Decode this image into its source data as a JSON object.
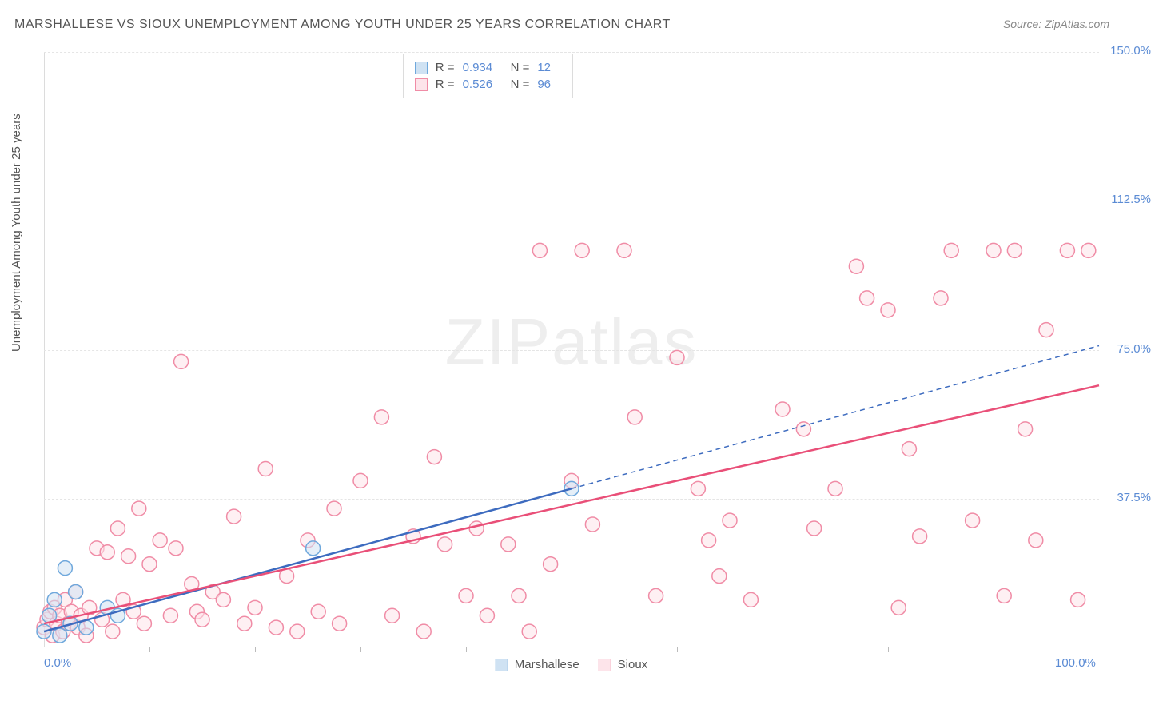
{
  "title": "MARSHALLESE VS SIOUX UNEMPLOYMENT AMONG YOUTH UNDER 25 YEARS CORRELATION CHART",
  "source": "Source: ZipAtlas.com",
  "y_axis_label": "Unemployment Among Youth under 25 years",
  "watermark_a": "ZIP",
  "watermark_b": "atlas",
  "chart": {
    "type": "scatter-with-regression",
    "background_color": "#ffffff",
    "grid_color": "#e5e5e5",
    "axis_color": "#dcdcdc",
    "tick_label_color": "#5b8bd4",
    "text_color": "#555555",
    "xlim": [
      0,
      100
    ],
    "ylim": [
      0,
      150
    ],
    "x_ticks_minor": [
      10,
      20,
      30,
      40,
      50,
      60,
      70,
      80,
      90
    ],
    "x_tick_labels": [
      {
        "pos": 0,
        "label": "0.0%"
      },
      {
        "pos": 100,
        "label": "100.0%"
      }
    ],
    "y_tick_labels": [
      {
        "pos": 37.5,
        "label": "37.5%"
      },
      {
        "pos": 75.0,
        "label": "75.0%"
      },
      {
        "pos": 112.5,
        "label": "112.5%"
      },
      {
        "pos": 150.0,
        "label": "150.0%"
      }
    ],
    "series": [
      {
        "name": "Marshallese",
        "color_fill": "#cfe2f3",
        "color_stroke": "#6fa8dc",
        "line_color": "#3d6bbf",
        "marker_radius": 9,
        "r_value": "0.934",
        "n_value": "12",
        "regression": {
          "x1": 0,
          "y1": 4,
          "x2_solid": 50,
          "y2_solid": 40,
          "x2": 100,
          "y2": 76
        },
        "points": [
          [
            0,
            4
          ],
          [
            0.5,
            8
          ],
          [
            1,
            12
          ],
          [
            1.5,
            3
          ],
          [
            2,
            20
          ],
          [
            2.5,
            6
          ],
          [
            3,
            14
          ],
          [
            4,
            5
          ],
          [
            6,
            10
          ],
          [
            7,
            8
          ],
          [
            25.5,
            25
          ],
          [
            50,
            40
          ]
        ]
      },
      {
        "name": "Sioux",
        "color_fill": "#fde4ea",
        "color_stroke": "#f08ca6",
        "line_color": "#e94f78",
        "marker_radius": 9,
        "r_value": "0.526",
        "n_value": "96",
        "regression": {
          "x1": 0,
          "y1": 6,
          "x2_solid": 100,
          "y2_solid": 66,
          "x2": 100,
          "y2": 66
        },
        "points": [
          [
            0,
            5
          ],
          [
            0.3,
            7
          ],
          [
            0.6,
            9
          ],
          [
            0.8,
            3
          ],
          [
            1,
            10
          ],
          [
            1.2,
            6
          ],
          [
            1.5,
            8
          ],
          [
            1.8,
            4
          ],
          [
            2,
            12
          ],
          [
            2.3,
            6
          ],
          [
            2.6,
            9
          ],
          [
            3,
            14
          ],
          [
            3.2,
            5
          ],
          [
            3.5,
            8
          ],
          [
            4,
            3
          ],
          [
            4.3,
            10
          ],
          [
            5,
            25
          ],
          [
            5.5,
            7
          ],
          [
            6,
            24
          ],
          [
            6.5,
            4
          ],
          [
            7,
            30
          ],
          [
            7.5,
            12
          ],
          [
            8,
            23
          ],
          [
            8.5,
            9
          ],
          [
            9,
            35
          ],
          [
            9.5,
            6
          ],
          [
            10,
            21
          ],
          [
            11,
            27
          ],
          [
            12,
            8
          ],
          [
            12.5,
            25
          ],
          [
            13,
            72
          ],
          [
            14,
            16
          ],
          [
            14.5,
            9
          ],
          [
            15,
            7
          ],
          [
            16,
            14
          ],
          [
            17,
            12
          ],
          [
            18,
            33
          ],
          [
            19,
            6
          ],
          [
            20,
            10
          ],
          [
            21,
            45
          ],
          [
            22,
            5
          ],
          [
            23,
            18
          ],
          [
            24,
            4
          ],
          [
            25,
            27
          ],
          [
            26,
            9
          ],
          [
            27.5,
            35
          ],
          [
            28,
            6
          ],
          [
            30,
            42
          ],
          [
            32,
            58
          ],
          [
            33,
            8
          ],
          [
            35,
            28
          ],
          [
            36,
            4
          ],
          [
            37,
            48
          ],
          [
            38,
            26
          ],
          [
            40,
            13
          ],
          [
            41,
            30
          ],
          [
            42,
            8
          ],
          [
            44,
            26
          ],
          [
            45,
            13
          ],
          [
            46,
            4
          ],
          [
            47,
            100
          ],
          [
            48,
            21
          ],
          [
            50,
            42
          ],
          [
            51,
            100
          ],
          [
            52,
            31
          ],
          [
            55,
            100
          ],
          [
            56,
            58
          ],
          [
            58,
            13
          ],
          [
            60,
            73
          ],
          [
            62,
            40
          ],
          [
            63,
            27
          ],
          [
            64,
            18
          ],
          [
            65,
            32
          ],
          [
            67,
            12
          ],
          [
            70,
            60
          ],
          [
            72,
            55
          ],
          [
            73,
            30
          ],
          [
            75,
            40
          ],
          [
            77,
            96
          ],
          [
            78,
            88
          ],
          [
            80,
            85
          ],
          [
            81,
            10
          ],
          [
            82,
            50
          ],
          [
            83,
            28
          ],
          [
            85,
            88
          ],
          [
            86,
            100
          ],
          [
            88,
            32
          ],
          [
            90,
            100
          ],
          [
            91,
            13
          ],
          [
            92,
            100
          ],
          [
            93,
            55
          ],
          [
            94,
            27
          ],
          [
            95,
            80
          ],
          [
            97,
            100
          ],
          [
            98,
            12
          ],
          [
            99,
            100
          ]
        ]
      }
    ]
  }
}
